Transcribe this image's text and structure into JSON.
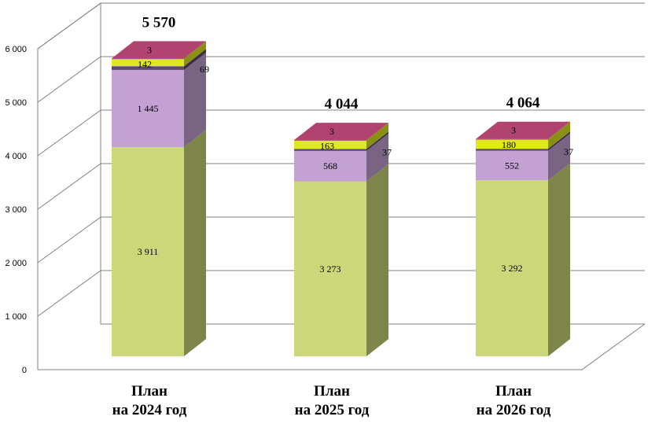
{
  "chart_data": {
    "type": "bar",
    "stacked": true,
    "title": "",
    "xlabel": "",
    "ylabel": "",
    "ylim": [
      0,
      6000
    ],
    "yticks": [
      0,
      1000,
      2000,
      3000,
      4000,
      5000,
      6000
    ],
    "ytick_labels": [
      "0",
      "1 000",
      "2 000",
      "3 000",
      "4 000",
      "5 000",
      "6 000"
    ],
    "grid": true,
    "categories": [
      {
        "line1": "План",
        "line2": "на 2024 год"
      },
      {
        "line1": "План",
        "line2": "на 2025 год"
      },
      {
        "line1": "План",
        "line2": "на 2026 год"
      }
    ],
    "totals": [
      5570,
      4044,
      4064
    ],
    "total_labels": [
      "5 570",
      "4 044",
      "4 064"
    ],
    "series": [
      {
        "name": "series-1",
        "color": "#cbd779",
        "values": [
          3911,
          3273,
          3292
        ],
        "labels": [
          "3 911",
          "3 273",
          "3 292"
        ]
      },
      {
        "name": "series-2",
        "color": "#c3a1d3",
        "values": [
          1445,
          568,
          552
        ],
        "labels": [
          "1 445",
          "568",
          "552"
        ]
      },
      {
        "name": "series-3",
        "color": "#5e4a6e",
        "values": [
          69,
          37,
          37
        ],
        "labels": [
          "69",
          "37",
          "37"
        ]
      },
      {
        "name": "series-4",
        "color": "#dfe920",
        "values": [
          142,
          163,
          180
        ],
        "labels": [
          "142",
          "163",
          "180"
        ]
      },
      {
        "name": "series-5",
        "color": "#b0446f",
        "values": [
          3,
          3,
          3
        ],
        "labels": [
          "3",
          "3",
          "3"
        ]
      }
    ]
  }
}
